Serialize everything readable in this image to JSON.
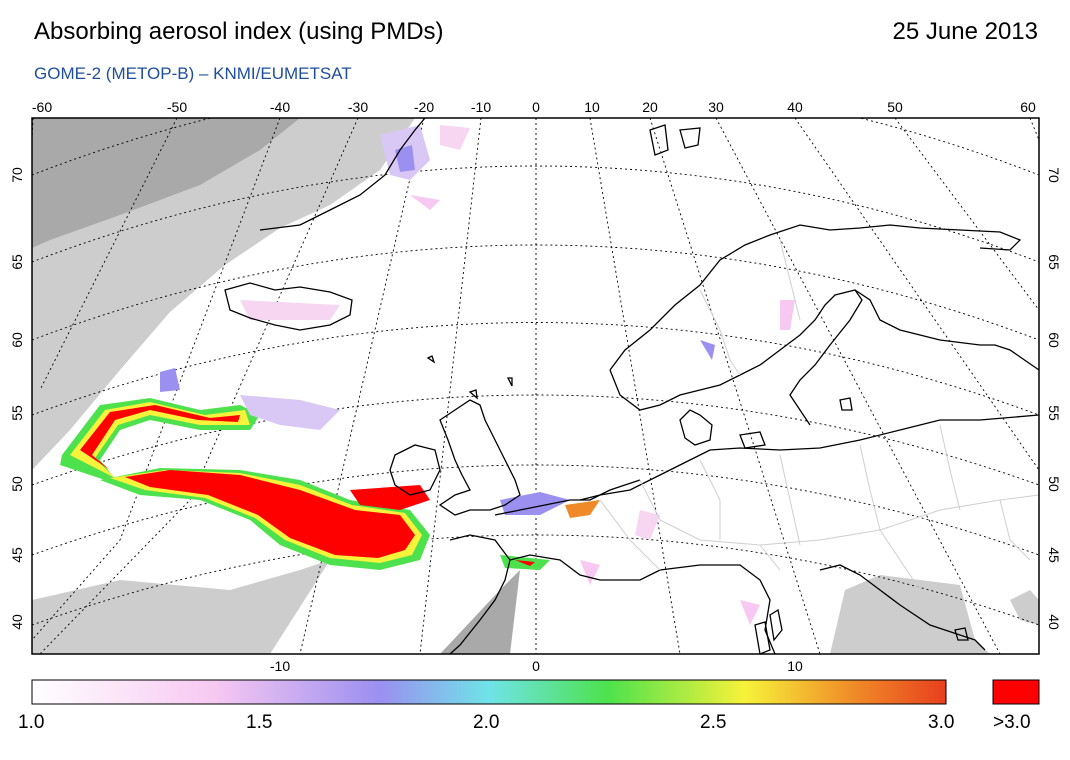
{
  "header": {
    "title": "Absorbing aerosol index (using PMDs)",
    "date": "25 June 2013",
    "subtitle": "GOME-2 (METOP-B)  –  KNMI/EUMETSAT"
  },
  "map": {
    "top_lon_labels": [
      "-60",
      "-50",
      "-40",
      "-30",
      "-20",
      "-10",
      "0",
      "10",
      "20",
      "30",
      "40",
      "50",
      "60"
    ],
    "bottom_lon_labels": [
      "-10",
      "0",
      "10"
    ],
    "lat_labels": [
      "70",
      "65",
      "60",
      "55",
      "50",
      "45",
      "40"
    ],
    "colors": {
      "land_outline": "#000000",
      "no_data": "#c8c8c8",
      "grid": "#000000",
      "border": "#cfcfcf"
    }
  },
  "colorbar": {
    "tick_labels": [
      "1.0",
      "1.5",
      "2.0",
      "2.5",
      "3.0"
    ],
    "overflow_label": ">3.0",
    "stops": [
      "#ffffff",
      "#f7c8f2",
      "#9b8ff0",
      "#6fe3e8",
      "#4de24d",
      "#f7f23a",
      "#f08a28",
      "#e8401e"
    ],
    "overflow_color": "#ff0000"
  }
}
